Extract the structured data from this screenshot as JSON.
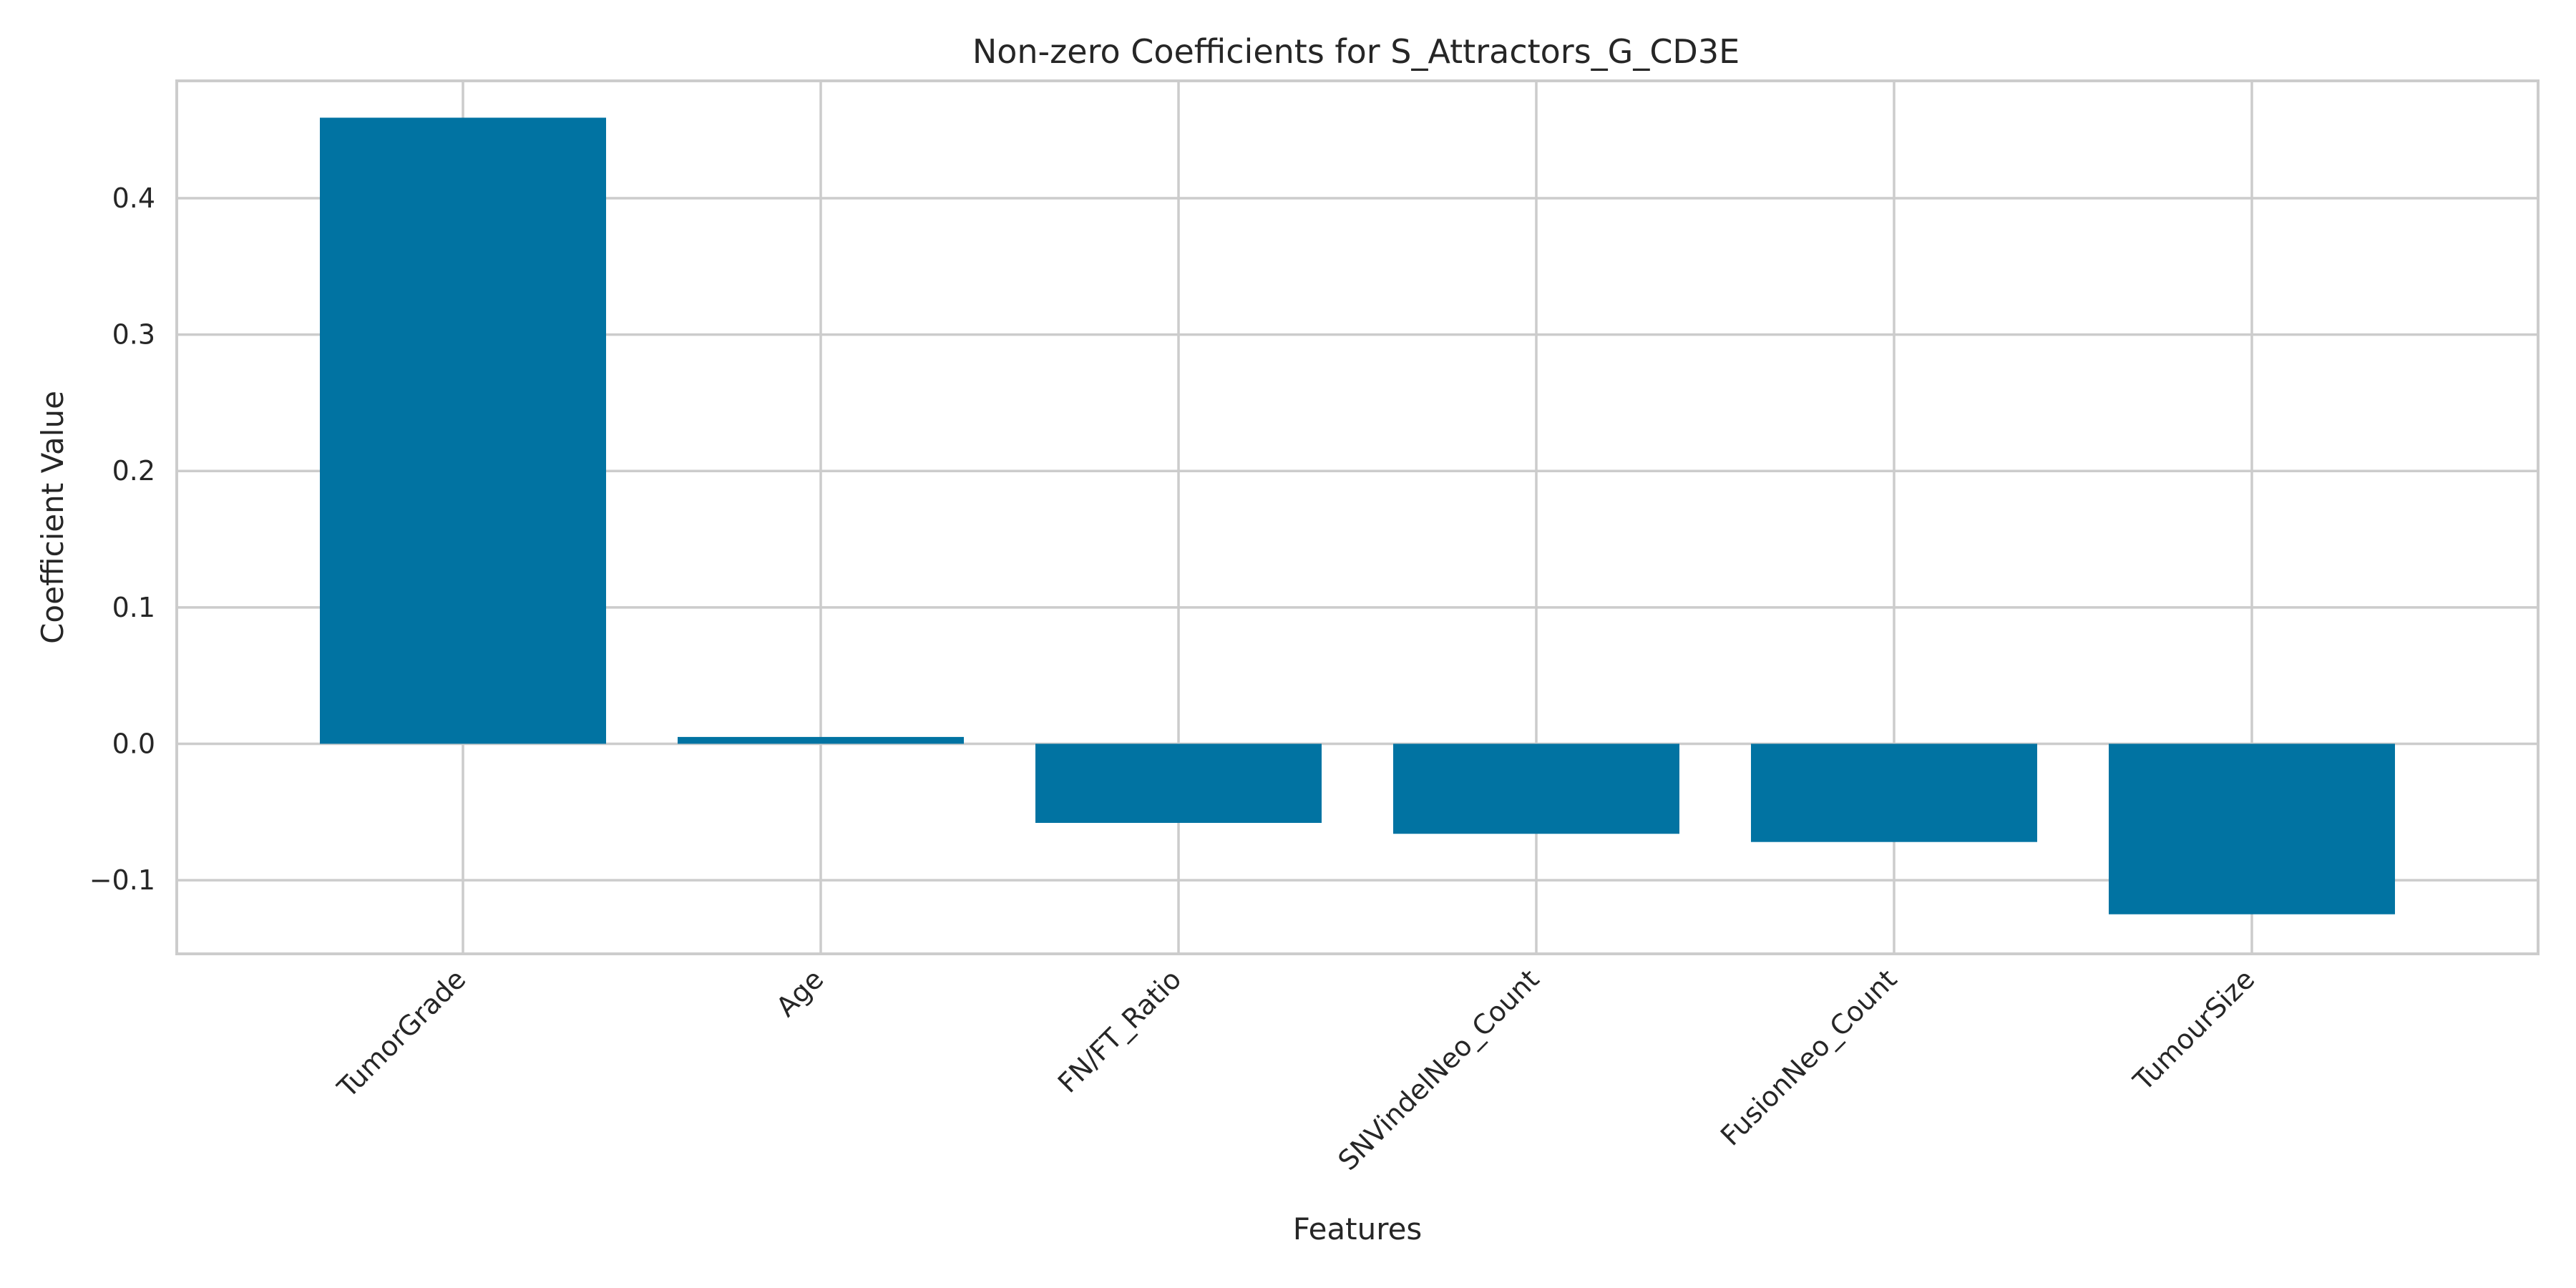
{
  "chart_data": {
    "type": "bar",
    "title": "Non-zero Coefficients for S_Attractors_G_CD3E",
    "xlabel": "Features",
    "ylabel": "Coefficient Value",
    "categories": [
      "TumorGrade",
      "Age",
      "FN/FT_Ratio",
      "SNVindelNeo_Count",
      "FusionNeo_Count",
      "TumourSize"
    ],
    "values": [
      0.459,
      0.005,
      -0.058,
      -0.066,
      -0.072,
      -0.125
    ],
    "ylim": [
      -0.154,
      0.486
    ],
    "yticks": [
      -0.1,
      0.0,
      0.1,
      0.2,
      0.3,
      0.4
    ],
    "ytick_labels": [
      "−0.1",
      "0.0",
      "0.1",
      "0.2",
      "0.3",
      "0.4"
    ],
    "grid": true,
    "bar_color": "#0173a2",
    "grid_color": "#cccccc",
    "frame_color": "#cccccc"
  }
}
